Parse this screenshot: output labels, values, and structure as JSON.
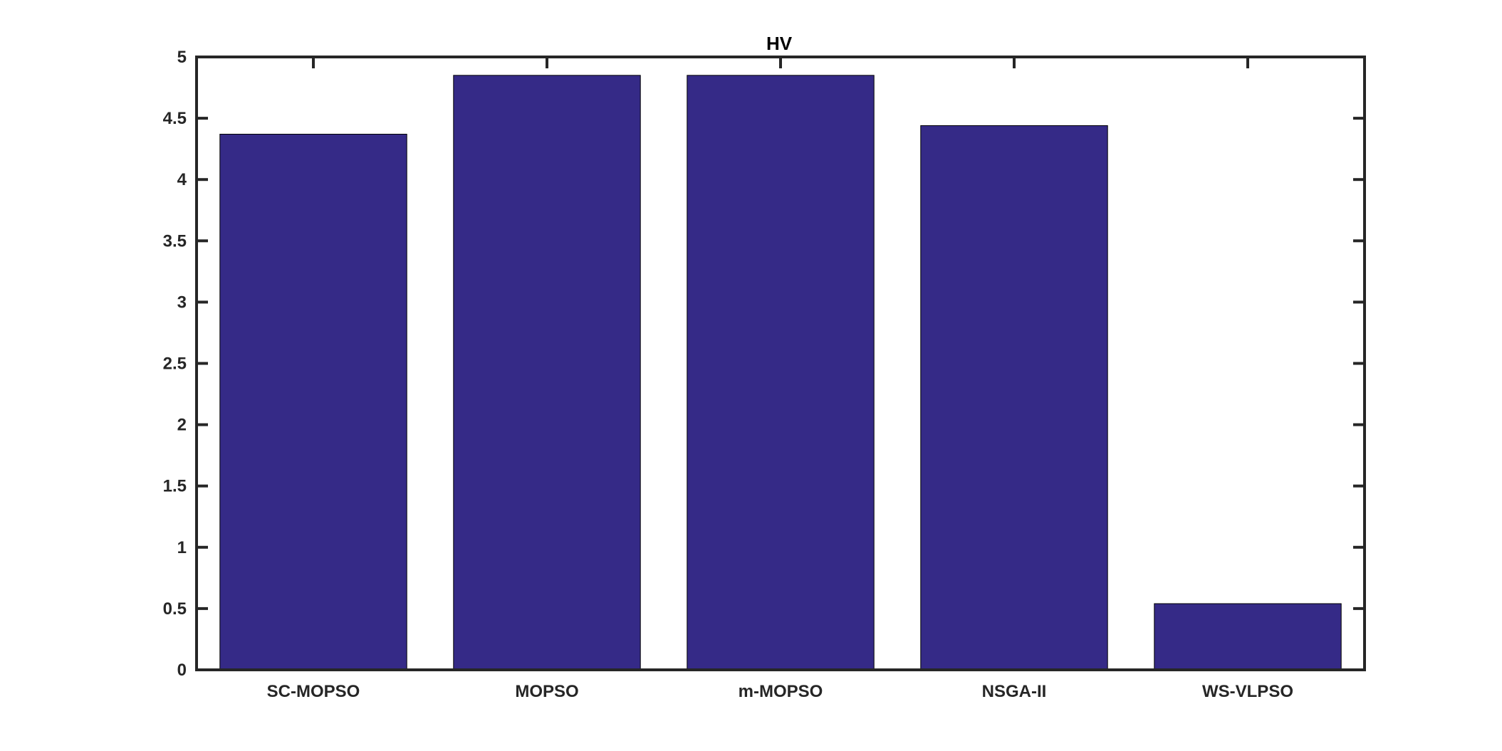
{
  "chart_data": {
    "type": "bar",
    "title": "HV",
    "xlabel": "",
    "ylabel": "",
    "categories": [
      "SC-MOPSO",
      "MOPSO",
      "m-MOPSO",
      "NSGA-II",
      "WS-VLPSO"
    ],
    "values": [
      4.37,
      4.85,
      4.85,
      4.44,
      0.54
    ],
    "ylim": [
      0,
      5
    ],
    "yticks": [
      0,
      0.5,
      1,
      1.5,
      2,
      2.5,
      3,
      3.5,
      4,
      4.5,
      5
    ],
    "ytick_labels": [
      "0",
      "0.5",
      "1",
      "1.5",
      "2",
      "2.5",
      "3",
      "3.5",
      "4",
      "4.5",
      "5"
    ],
    "grid": false,
    "legend": "none",
    "bar_color": "#352A87",
    "axis_color": "#262626"
  }
}
